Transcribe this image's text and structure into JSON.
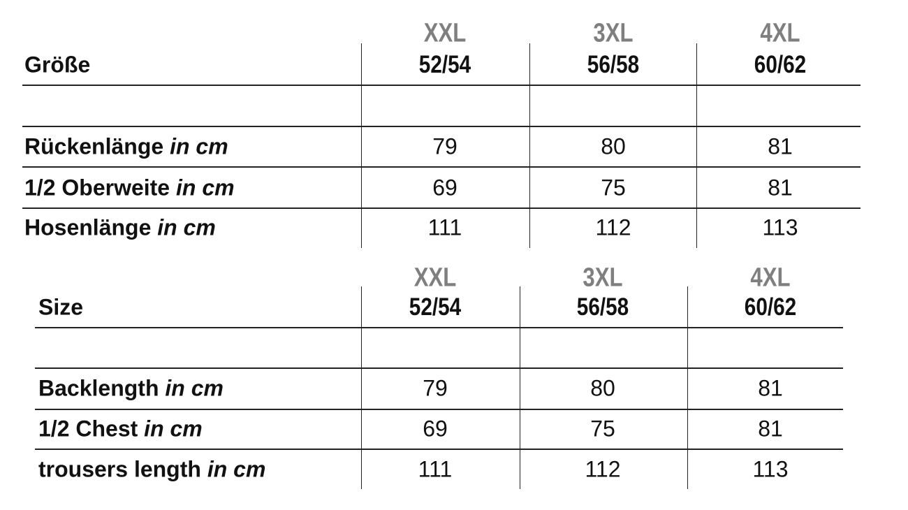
{
  "tables": [
    {
      "header_label": "Größe",
      "sizes": [
        "XXL",
        "3XL",
        "4XL"
      ],
      "eu_sizes": [
        "52/54",
        "56/58",
        "60/62"
      ],
      "rows": [
        {
          "label": "Rückenlänge",
          "unit": "in cm",
          "values": [
            "79",
            "80",
            "81"
          ]
        },
        {
          "label": "1/2 Oberweite",
          "unit": "in cm",
          "values": [
            "69",
            "75",
            "81"
          ]
        },
        {
          "label": "Hosenlänge",
          "unit": "in cm",
          "values": [
            "111",
            "112",
            "113"
          ]
        }
      ]
    },
    {
      "header_label": "Size",
      "sizes": [
        "XXL",
        "3XL",
        "4XL"
      ],
      "eu_sizes": [
        "52/54",
        "56/58",
        "60/62"
      ],
      "rows": [
        {
          "label": "Backlength",
          "unit": "in cm",
          "values": [
            "79",
            "80",
            "81"
          ]
        },
        {
          "label": "1/2 Chest",
          "unit": "in cm",
          "values": [
            "69",
            "75",
            "81"
          ]
        },
        {
          "label": "trousers length",
          "unit": "in cm",
          "values": [
            "111",
            "112",
            "113"
          ]
        }
      ]
    }
  ],
  "colors": {
    "size_header": "#7f7f7f",
    "text": "#111111",
    "lines": "#222222"
  }
}
